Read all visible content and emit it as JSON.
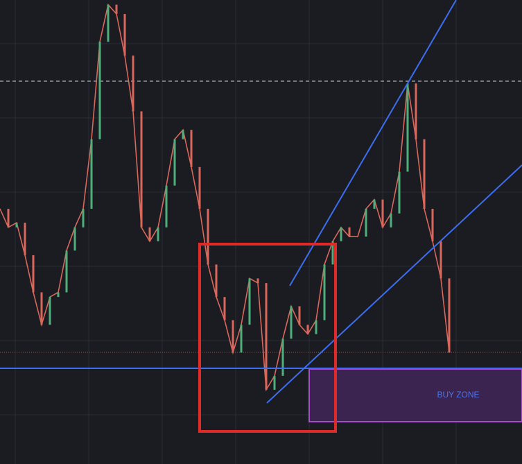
{
  "chart_data": {
    "type": "line",
    "color": "#d9675c",
    "ylim": [
      0,
      100
    ],
    "values": [
      55,
      51,
      52,
      45,
      37,
      30,
      36,
      37,
      46,
      51,
      55,
      70,
      91,
      99,
      97,
      88,
      76,
      51,
      48,
      51,
      60,
      70,
      72,
      64,
      55,
      43,
      36,
      31,
      24,
      30,
      40,
      39,
      16,
      19,
      27,
      34,
      30,
      28,
      31,
      43,
      48,
      51,
      49,
      49,
      55,
      57,
      51,
      54,
      63,
      82,
      70,
      55,
      48,
      40,
      24
    ],
    "annotation": "BUY ZONE"
  }
}
